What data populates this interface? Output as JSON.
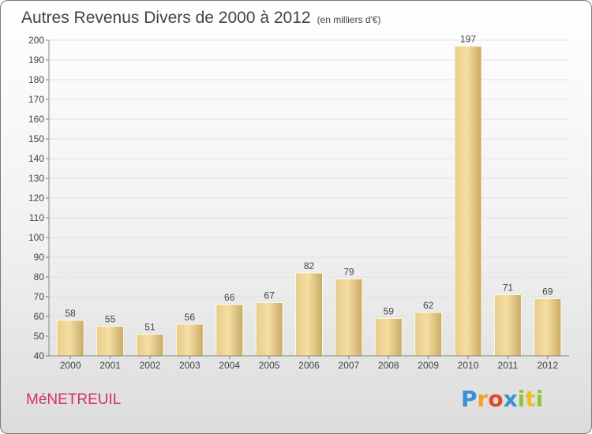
{
  "header": {
    "title": "Autres Revenus Divers de 2000 à 2012",
    "unit": "(en milliers d'€)"
  },
  "footer": {
    "town": "MéNETREUIL",
    "logo_text": "Proxiti"
  },
  "colors": {
    "bar_light": "#f5dea3",
    "bar_dark": "#c9aa65",
    "grid": "#e2e2e2",
    "town": "#d4325f"
  },
  "chart_data": {
    "type": "bar",
    "title": "Autres Revenus Divers de 2000 à 2012",
    "xlabel": "",
    "ylabel": "",
    "ylim": [
      40,
      200
    ],
    "yticks": [
      40,
      50,
      60,
      70,
      80,
      90,
      100,
      110,
      120,
      130,
      140,
      150,
      160,
      170,
      180,
      190,
      200
    ],
    "grid": true,
    "categories": [
      "2000",
      "2001",
      "2002",
      "2003",
      "2004",
      "2005",
      "2006",
      "2007",
      "2008",
      "2009",
      "2010",
      "2011",
      "2012"
    ],
    "values": [
      58,
      55,
      51,
      56,
      66,
      67,
      82,
      79,
      59,
      62,
      197,
      71,
      69
    ]
  }
}
